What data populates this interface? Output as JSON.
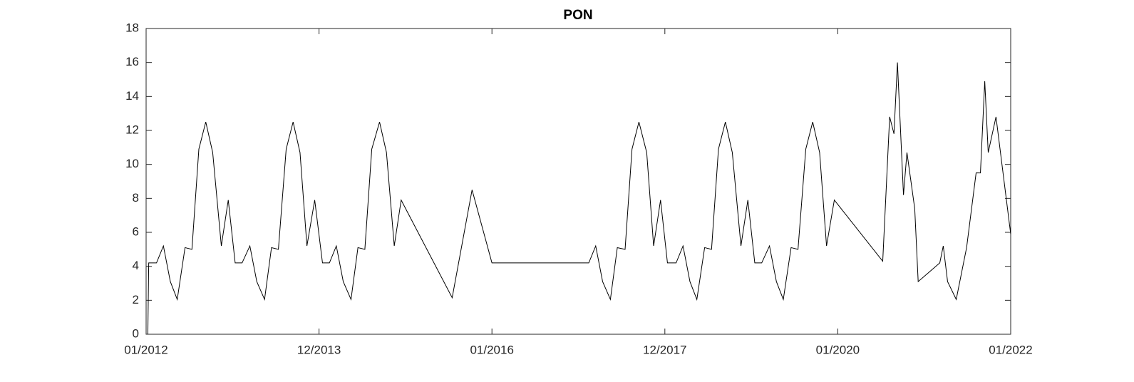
{
  "chart_data": {
    "type": "line",
    "title": "PON",
    "x": [
      0.2,
      0.3,
      1.2,
      2.0,
      2.8,
      3.6,
      4.5,
      5.3,
      6.1,
      6.9,
      7.7,
      8.7,
      9.5,
      10.3,
      11.1,
      12.0,
      12.8,
      13.7,
      14.5,
      15.3,
      16.2,
      17.0,
      17.8,
      18.6,
      19.5,
      20.4,
      21.2,
      22.0,
      22.8,
      23.7,
      24.5,
      25.3,
      26.1,
      27.0,
      27.8,
      28.7,
      29.5,
      35.4,
      37.7,
      40.0,
      51.2,
      52.0,
      52.8,
      53.7,
      54.5,
      55.4,
      56.2,
      57.0,
      57.9,
      58.7,
      59.5,
      60.3,
      61.3,
      62.1,
      62.9,
      63.7,
      64.6,
      65.4,
      66.2,
      67.0,
      67.8,
      68.8,
      69.6,
      70.4,
      71.2,
      72.1,
      72.9,
      73.7,
      74.6,
      75.4,
      76.3,
      77.1,
      77.9,
      78.7,
      79.6,
      85.2,
      86.0,
      86.5,
      86.9,
      87.6,
      88.0,
      88.9,
      89.3,
      91.8,
      92.2,
      92.7,
      93.7,
      94.9,
      96.0,
      96.5,
      97.0,
      97.4,
      98.3,
      100
    ],
    "series": [
      {
        "name": "PON",
        "color": "#000000",
        "values": [
          0,
          4.2,
          4.2,
          5.2,
          3.1,
          2.05,
          5.1,
          5.0,
          10.9,
          12.5,
          10.7,
          5.2,
          7.9,
          4.2,
          4.2,
          5.2,
          3.1,
          2.05,
          5.1,
          5.0,
          10.9,
          12.5,
          10.7,
          5.2,
          7.9,
          4.2,
          4.2,
          5.2,
          3.1,
          2.05,
          5.1,
          5.0,
          10.9,
          12.5,
          10.7,
          5.2,
          7.9,
          2.15,
          8.5,
          4.2,
          4.2,
          5.2,
          3.1,
          2.05,
          5.1,
          5.0,
          10.9,
          12.5,
          10.7,
          5.2,
          7.9,
          4.2,
          4.2,
          5.2,
          3.1,
          2.05,
          5.1,
          5.0,
          10.9,
          12.5,
          10.7,
          5.2,
          7.9,
          4.2,
          4.2,
          5.2,
          3.1,
          2.05,
          5.1,
          5.0,
          10.9,
          12.5,
          10.7,
          5.2,
          7.9,
          4.3,
          12.8,
          11.8,
          16.0,
          8.2,
          10.7,
          7.4,
          3.1,
          4.2,
          5.2,
          3.1,
          2.05,
          5.1,
          9.5,
          9.5,
          14.9,
          10.7,
          12.8,
          5.9
        ]
      }
    ],
    "xlim": [
      0,
      100
    ],
    "xticks": [
      {
        "value": 0,
        "label": "01/2012"
      },
      {
        "value": 20,
        "label": "12/2013"
      },
      {
        "value": 40,
        "label": "01/2016"
      },
      {
        "value": 60,
        "label": "12/2017"
      },
      {
        "value": 80,
        "label": "01/2020"
      },
      {
        "value": 100,
        "label": "01/2022"
      }
    ],
    "ylim": [
      0,
      18
    ],
    "yticks": [
      0,
      2,
      4,
      6,
      8,
      10,
      12,
      14,
      16,
      18
    ],
    "grid": false
  }
}
